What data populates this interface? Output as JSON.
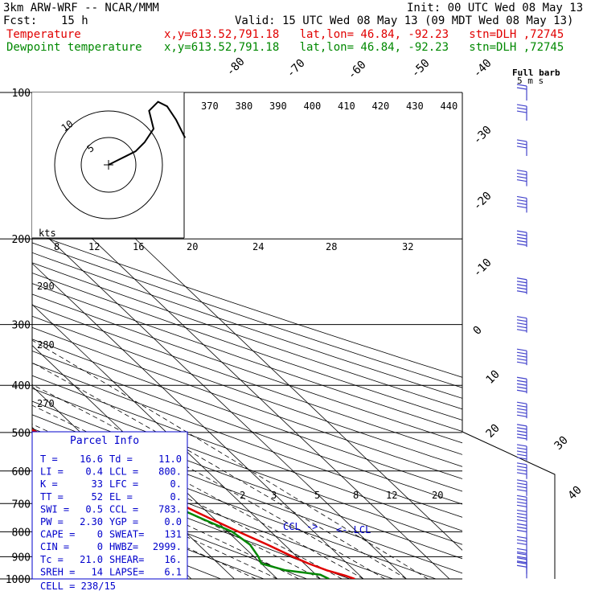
{
  "header": {
    "model": "3km ARW-WRF -- NCAR/MMM",
    "fcst_label": "Fcst:",
    "fcst_value": "15 h",
    "init": "Init: 00 UTC Wed 08 May 13",
    "valid": "Valid: 15 UTC Wed 08 May 13 (09 MDT Wed 08 May 13)",
    "temp_label": "Temperature",
    "dew_label": "Dewpoint temperature",
    "location": "x,y=613.52,791.18   lat,lon= 46.84, -92.23   stn=DLH ,72745",
    "full_barb_label": "Full barb",
    "full_barb_value": "5 m s"
  },
  "colors": {
    "temperature": "#e00000",
    "dewpoint": "#008800",
    "parcel_box": "#0000cc",
    "wind_barbs": "#4444cc"
  },
  "parcel_info": {
    "title": "Parcel Info",
    "rows": [
      [
        "T  =",
        "16.6",
        "Td =",
        "11.0"
      ],
      [
        "LI =",
        "0.4",
        "LCL =",
        "800."
      ],
      [
        "K  =",
        "33",
        "LFC =",
        "0."
      ],
      [
        "TT =",
        "52",
        "EL  =",
        "0."
      ],
      [
        "SWI =",
        "0.5",
        "CCL =",
        "783."
      ],
      [
        "PW =",
        "2.30",
        "YGP =",
        "0.0"
      ],
      [
        "CAPE =",
        "0",
        "SWEAT=",
        "131"
      ],
      [
        "CIN =",
        "0",
        "HWBZ=",
        "2999."
      ],
      [
        "Tc =",
        "21.0",
        "SHEAR=",
        "16."
      ],
      [
        "SREH =",
        "14",
        "LAPSE=",
        "6.1"
      ]
    ],
    "cell": "CELL = 238/15"
  },
  "chart_data": {
    "type": "line",
    "title": "Skew-T log-P diagram",
    "y_axis": "pressure (hPa)",
    "pressure_levels": [
      100,
      200,
      300,
      400,
      500,
      600,
      700,
      800,
      900,
      1000
    ],
    "isotherm_labels": [
      -80,
      -70,
      -60,
      -50,
      -40,
      -30,
      -20,
      -10,
      0,
      10,
      20,
      30,
      40
    ],
    "theta_labels": [
      370,
      380,
      390,
      400,
      410,
      420,
      430,
      440
    ],
    "theta_left_labels": [
      290,
      280,
      270
    ],
    "mixing_ratio_labels_upper": [
      8,
      12,
      16,
      20,
      24,
      28,
      32
    ],
    "mixing_ratio_labels_lower": [
      2,
      3,
      5,
      8,
      12,
      20
    ],
    "annotations": [
      "CCL ->",
      "<- LCL"
    ],
    "hodograph_rings": [
      "5",
      "10"
    ],
    "kts_label": "kts",
    "series": [
      {
        "name": "Temperature",
        "p": [
          1000,
          985,
          960,
          930,
          900,
          850,
          800,
          750,
          700,
          650,
          600,
          550,
          500,
          450,
          400,
          350,
          300,
          260,
          230,
          210,
          200,
          180,
          150,
          120,
          100
        ],
        "t": [
          18.0,
          16.6,
          13.6,
          11.0,
          9.0,
          6.0,
          2.5,
          -1.0,
          -4.5,
          -8.0,
          -11.5,
          -15.0,
          -20.0,
          -25.5,
          -32.0,
          -39.0,
          -46.5,
          -53.0,
          -56.5,
          -55.0,
          -54.0,
          -53.5,
          -54.5,
          -55.5,
          -57.0
        ]
      },
      {
        "name": "Dewpoint temperature",
        "p": [
          1000,
          980,
          960,
          930,
          900,
          850,
          800,
          750,
          700,
          650,
          600,
          550,
          500,
          450,
          400,
          380,
          350,
          320,
          300,
          270,
          250,
          220,
          200,
          170,
          150,
          130,
          110,
          100
        ],
        "td": [
          12.0,
          11.0,
          4.0,
          0.0,
          1.0,
          2.0,
          1.0,
          -3.0,
          -7.0,
          -12.0,
          -18.0,
          -22.0,
          -27.0,
          -33.0,
          -48.0,
          -48.0,
          -49.0,
          -53.0,
          -60.0,
          -65.0,
          -66.0,
          -65.0,
          -67.0,
          -75.0,
          -82.0,
          -88.0,
          -88.0,
          -82.0
        ]
      }
    ],
    "wind_barbs": {
      "p": [
        960,
        940,
        920,
        900,
        850,
        800,
        750,
        700,
        650,
        600,
        550,
        500,
        450,
        400,
        350,
        300,
        250,
        200,
        170,
        150,
        130,
        110,
        100
      ],
      "speed_ms": [
        10,
        10,
        10,
        10,
        15,
        15,
        20,
        20,
        20,
        20,
        25,
        25,
        25,
        25,
        25,
        25,
        25,
        25,
        20,
        20,
        15,
        15,
        10
      ]
    },
    "hodograph": {
      "u": [
        0,
        2,
        4,
        6,
        8,
        10,
        9,
        11,
        13,
        15,
        17
      ],
      "v": [
        0,
        1,
        2,
        3,
        5,
        8,
        12,
        14,
        13,
        10,
        6
      ]
    }
  }
}
